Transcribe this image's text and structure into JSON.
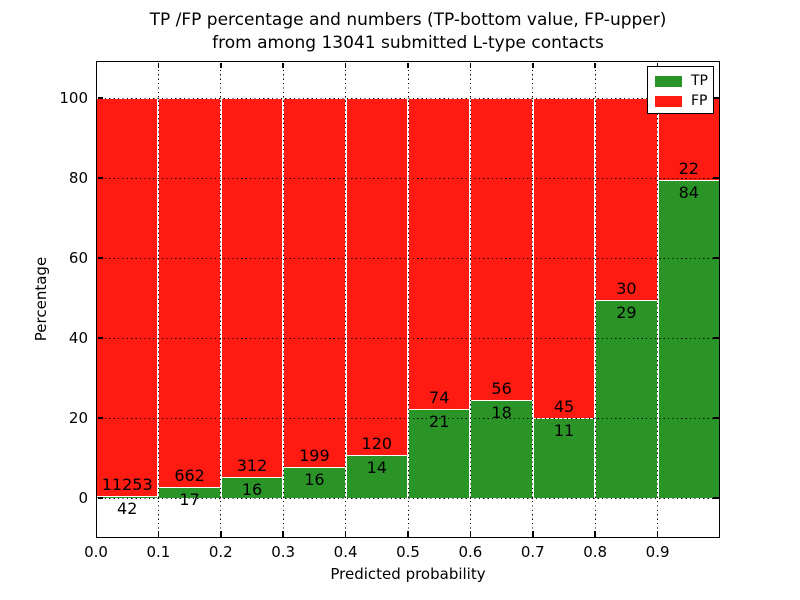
{
  "chart_data": {
    "type": "bar",
    "stacked": true,
    "normalized_to_percent": true,
    "title_lines": [
      "TP /FP percentage and numbers (TP-bottom value, FP-upper)",
      "from among 13041 submitted L-type contacts"
    ],
    "xlabel": "Predicted probability",
    "ylabel": "Percentage",
    "total_contacts": 13041,
    "x_tick_labels": [
      "0.0",
      "0.1",
      "0.2",
      "0.3",
      "0.4",
      "0.5",
      "0.6",
      "0.7",
      "0.8",
      "0.9"
    ],
    "y_tick_values": [
      0,
      20,
      40,
      60,
      80,
      100
    ],
    "xlim": [
      0.0,
      1.0
    ],
    "ylim": [
      -10,
      110
    ],
    "bin_ranges": [
      "0.0-0.1",
      "0.1-0.2",
      "0.2-0.3",
      "0.3-0.4",
      "0.4-0.5",
      "0.5-0.6",
      "0.6-0.7",
      "0.7-0.8",
      "0.8-0.9",
      "0.9-1.0"
    ],
    "series": [
      {
        "name": "TP",
        "color": "#2B9427",
        "counts": [
          42,
          17,
          16,
          16,
          14,
          21,
          18,
          11,
          29,
          84
        ]
      },
      {
        "name": "FP",
        "color": "#FF1B12",
        "counts": [
          11253,
          662,
          312,
          199,
          120,
          74,
          56,
          45,
          30,
          22
        ]
      }
    ],
    "tp_percent": [
      0.37,
      2.5,
      4.88,
      7.44,
      10.45,
      22.11,
      24.32,
      19.64,
      49.15,
      79.25
    ],
    "grid": "dotted",
    "legend": {
      "position": "upper right",
      "entries": [
        "TP",
        "FP"
      ]
    }
  }
}
